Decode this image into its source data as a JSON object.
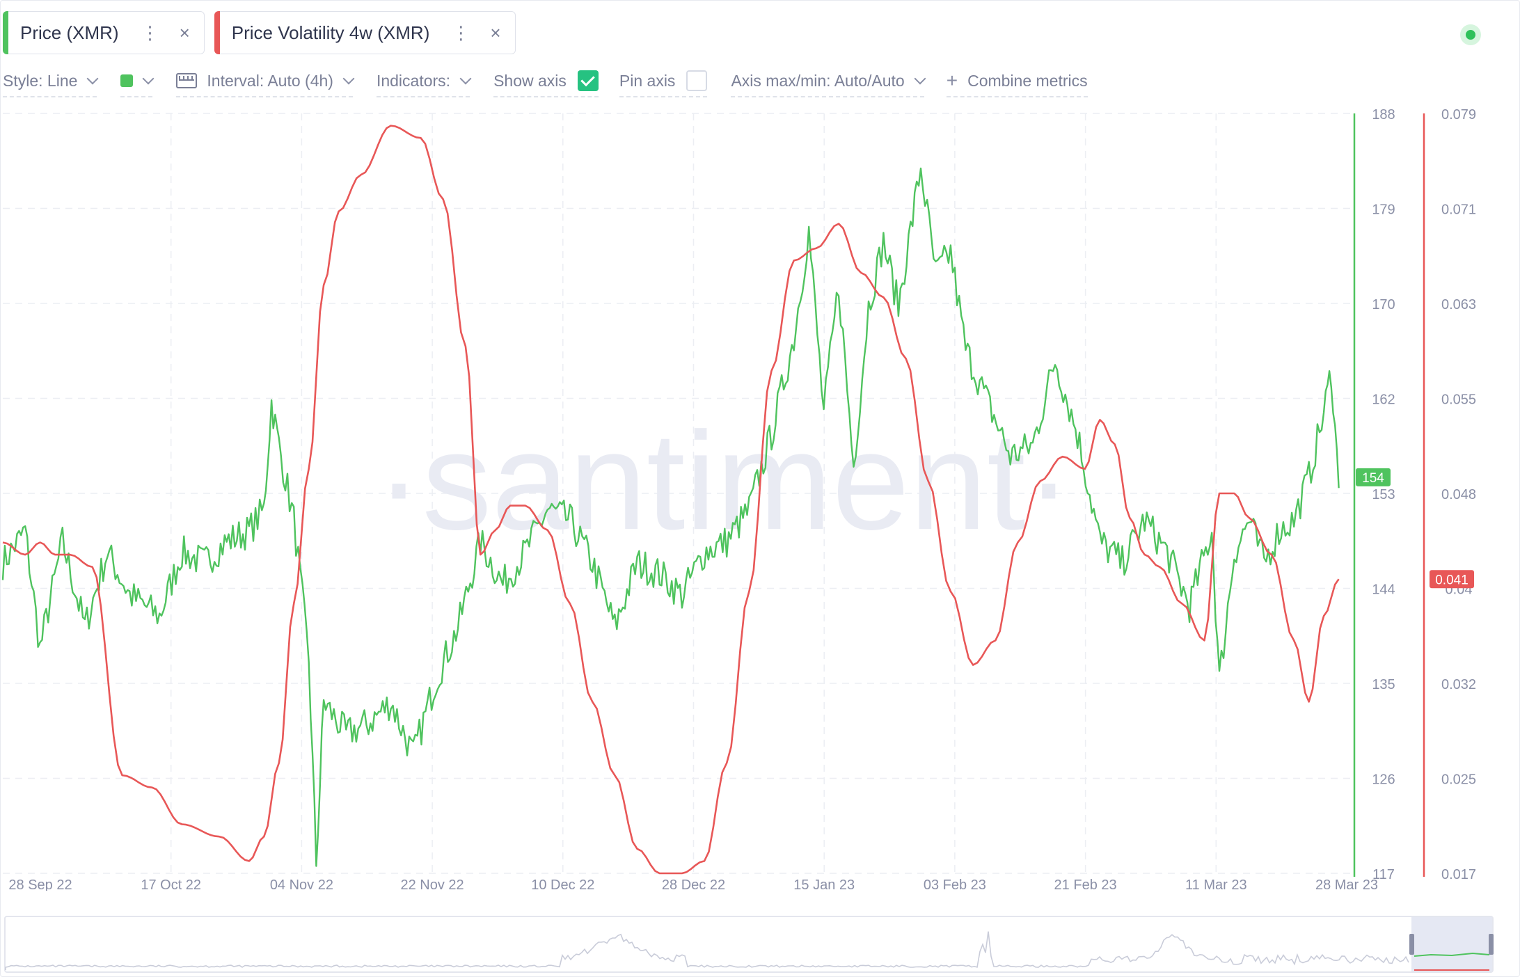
{
  "tabs": [
    {
      "label": "Price (XMR)",
      "color": "#4fc35e",
      "menu": "⋮",
      "close": "×"
    },
    {
      "label": "Price Volatility 4w (XMR)",
      "color": "#e85757",
      "menu": "⋮",
      "close": "×"
    }
  ],
  "toolbar": {
    "style_label": "Style: Line",
    "interval_label": "Interval: Auto (4h)",
    "indicators_label": "Indicators:",
    "show_axis_label": "Show axis",
    "show_axis_checked": true,
    "pin_axis_label": "Pin axis",
    "pin_axis_checked": false,
    "axis_maxmin_label": "Axis max/min: Auto/Auto",
    "combine_label": "Combine metrics",
    "color_swatch": "#4fc35e"
  },
  "live_indicator": "green",
  "chart_data": {
    "type": "line",
    "watermark": "·santiment·",
    "x_ticks": [
      "28 Sep 22",
      "17 Oct 22",
      "04 Nov 22",
      "22 Nov 22",
      "10 Dec 22",
      "28 Dec 22",
      "15 Jan 23",
      "03 Feb 23",
      "21 Feb 23",
      "11 Mar 23",
      "28 Mar 23"
    ],
    "x_range": [
      "2022-09-28",
      "2023-03-28"
    ],
    "grid": true,
    "y_left_axis": {
      "series": "Price (XMR)",
      "color": "#4fc35e",
      "ticks": [
        "188",
        "179",
        "170",
        "162",
        "153",
        "144",
        "135",
        "126",
        "117"
      ],
      "range": [
        117,
        188
      ]
    },
    "y_right_axis": {
      "series": "Price Volatility 4w (XMR)",
      "color": "#e85757",
      "ticks": [
        "0.079",
        "0.071",
        "0.063",
        "0.055",
        "0.048",
        "0.04",
        "0.032",
        "0.025",
        "0.017"
      ],
      "range": [
        0.017,
        0.079
      ]
    },
    "last_value_badges": [
      {
        "series": "Price (XMR)",
        "value": "154",
        "color": "#4fc35e"
      },
      {
        "series": "Price Volatility 4w (XMR)",
        "value": "0.041",
        "color": "#e85757"
      }
    ],
    "series": [
      {
        "name": "Price (XMR)",
        "color": "#4fc35e",
        "axis": "left",
        "x": [
          "2022-09-28",
          "2022-10-01",
          "2022-10-03",
          "2022-10-06",
          "2022-10-09",
          "2022-10-12",
          "2022-10-15",
          "2022-10-19",
          "2022-10-22",
          "2022-10-25",
          "2022-10-28",
          "2022-10-31",
          "2022-11-02",
          "2022-11-03",
          "2022-11-04",
          "2022-11-06",
          "2022-11-08",
          "2022-11-09",
          "2022-11-10",
          "2022-11-13",
          "2022-11-16",
          "2022-11-19",
          "2022-11-22",
          "2022-11-25",
          "2022-11-28",
          "2022-12-01",
          "2022-12-04",
          "2022-12-07",
          "2022-12-10",
          "2022-12-13",
          "2022-12-16",
          "2022-12-19",
          "2022-12-22",
          "2022-12-25",
          "2022-12-28",
          "2022-12-31",
          "2023-01-03",
          "2023-01-06",
          "2023-01-09",
          "2023-01-12",
          "2023-01-14",
          "2023-01-16",
          "2023-01-18",
          "2023-01-20",
          "2023-01-22",
          "2023-01-24",
          "2023-01-26",
          "2023-01-29",
          "2023-01-31",
          "2023-02-02",
          "2023-02-04",
          "2023-02-07",
          "2023-02-10",
          "2023-02-13",
          "2023-02-16",
          "2023-02-19",
          "2023-02-22",
          "2023-02-25",
          "2023-02-28",
          "2023-03-03",
          "2023-03-06",
          "2023-03-09",
          "2023-03-10",
          "2023-03-12",
          "2023-03-14",
          "2023-03-16",
          "2023-03-18",
          "2023-03-20",
          "2023-03-22",
          "2023-03-24",
          "2023-03-25",
          "2023-03-26"
        ],
        "values": [
          146,
          149,
          138,
          148,
          140,
          147,
          143,
          141,
          147,
          146,
          148,
          149,
          151,
          161,
          157,
          150,
          137,
          118,
          133,
          130,
          131,
          133,
          128,
          135,
          140,
          148,
          144,
          147,
          151,
          150,
          146,
          140,
          146,
          145,
          143,
          147,
          148,
          151,
          158,
          167,
          177,
          160,
          172,
          155,
          170,
          176,
          170,
          183,
          173,
          175,
          166,
          161,
          156,
          157,
          165,
          158,
          148,
          146,
          150,
          147,
          142,
          149,
          135,
          147,
          150,
          146,
          149,
          150,
          154,
          160,
          164,
          153
        ],
        "noise": 1.6
      },
      {
        "name": "Price Volatility 4w (XMR)",
        "color": "#e85757",
        "axis": "right",
        "x": [
          "2022-09-28",
          "2022-10-01",
          "2022-10-03",
          "2022-10-05",
          "2022-10-07",
          "2022-10-10",
          "2022-10-14",
          "2022-10-18",
          "2022-10-22",
          "2022-10-27",
          "2022-10-31",
          "2022-11-02",
          "2022-11-04",
          "2022-11-06",
          "2022-11-08",
          "2022-11-10",
          "2022-11-12",
          "2022-11-15",
          "2022-11-19",
          "2022-11-23",
          "2022-11-26",
          "2022-11-29",
          "2022-12-01",
          "2022-12-03",
          "2022-12-05",
          "2022-12-07",
          "2022-12-10",
          "2022-12-13",
          "2022-12-16",
          "2022-12-19",
          "2022-12-22",
          "2022-12-25",
          "2022-12-28",
          "2022-12-31",
          "2023-01-03",
          "2023-01-06",
          "2023-01-09",
          "2023-01-12",
          "2023-01-15",
          "2023-01-18",
          "2023-01-21",
          "2023-01-24",
          "2023-01-27",
          "2023-01-30",
          "2023-02-02",
          "2023-02-05",
          "2023-02-08",
          "2023-02-11",
          "2023-02-14",
          "2023-02-17",
          "2023-02-20",
          "2023-02-22",
          "2023-02-24",
          "2023-02-26",
          "2023-02-28",
          "2023-03-02",
          "2023-03-05",
          "2023-03-08",
          "2023-03-10",
          "2023-03-12",
          "2023-03-14",
          "2023-03-17",
          "2023-03-20",
          "2023-03-22",
          "2023-03-24",
          "2023-03-26"
        ],
        "values": [
          0.044,
          0.043,
          0.044,
          0.043,
          0.043,
          0.042,
          0.025,
          0.024,
          0.021,
          0.02,
          0.018,
          0.02,
          0.026,
          0.039,
          0.05,
          0.065,
          0.071,
          0.074,
          0.078,
          0.077,
          0.072,
          0.06,
          0.043,
          0.045,
          0.047,
          0.047,
          0.045,
          0.039,
          0.031,
          0.025,
          0.019,
          0.017,
          0.017,
          0.018,
          0.026,
          0.04,
          0.058,
          0.067,
          0.068,
          0.07,
          0.066,
          0.064,
          0.059,
          0.049,
          0.04,
          0.034,
          0.036,
          0.044,
          0.049,
          0.051,
          0.05,
          0.054,
          0.052,
          0.046,
          0.043,
          0.042,
          0.039,
          0.036,
          0.048,
          0.048,
          0.046,
          0.043,
          0.036,
          0.031,
          0.038,
          0.041
        ]
      }
    ]
  }
}
